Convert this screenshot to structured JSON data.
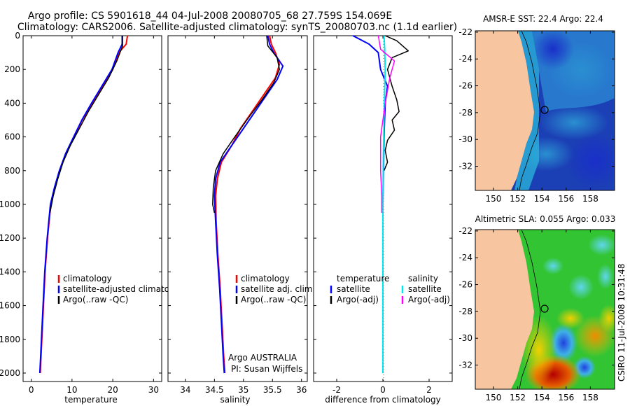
{
  "title": {
    "line1": "Argo profile: CS 5901618_44 04-Jul-2008 20080705_68 27.759S 154.069E",
    "line2": "Climatology: CARS2006. Satellite-adjusted climatology: synTS_20080703.nc (1.1d earlier)"
  },
  "timestamp": "CSIRO 11-Jul-2008 10:31:48",
  "colors": {
    "climatology": "#ff0000",
    "satellite": "#0000ff",
    "argo": "#000000",
    "satellite_sal": "#00e5ee",
    "argo_sal": "#ff00ff",
    "land": "#f7c59f"
  },
  "chart_data": [
    {
      "id": "temperature",
      "type": "line",
      "xlabel": "temperature",
      "xlim": [
        -2,
        32
      ],
      "ylim": [
        2050,
        0
      ],
      "xticks": [
        "0",
        "10",
        "20",
        "30"
      ],
      "xtick_values": [
        0,
        10,
        20,
        30
      ],
      "yticks": [
        "0",
        "200",
        "400",
        "600",
        "800",
        "1000",
        "1200",
        "1400",
        "1600",
        "1800",
        "2000"
      ],
      "ytick_values": [
        0,
        200,
        400,
        600,
        800,
        1000,
        1200,
        1400,
        1600,
        1800,
        2000
      ],
      "legend": [
        "climatology",
        "satellite-adjusted climatology",
        "Argo(..raw -QC)"
      ],
      "series": [
        {
          "name": "climatology",
          "color": "#ff0000",
          "width": 2,
          "points": [
            [
              23.6,
              0
            ],
            [
              23.3,
              50
            ],
            [
              21.5,
              100
            ],
            [
              20.0,
              200
            ],
            [
              17.5,
              300
            ],
            [
              15.0,
              400
            ],
            [
              12.5,
              500
            ],
            [
              10.5,
              600
            ],
            [
              8.5,
              700
            ],
            [
              7.0,
              800
            ],
            [
              5.8,
              900
            ],
            [
              4.8,
              1000
            ],
            [
              4.0,
              1200
            ],
            [
              3.4,
              1400
            ],
            [
              3.0,
              1600
            ],
            [
              2.6,
              1800
            ],
            [
              2.2,
              2000
            ]
          ]
        },
        {
          "name": "satellite-adjusted climatology",
          "color": "#0000ff",
          "width": 2,
          "points": [
            [
              22.3,
              0
            ],
            [
              22.3,
              50
            ],
            [
              21.3,
              100
            ],
            [
              19.8,
              200
            ],
            [
              17.3,
              300
            ],
            [
              14.8,
              400
            ],
            [
              12.4,
              500
            ],
            [
              10.4,
              600
            ],
            [
              8.4,
              700
            ],
            [
              6.9,
              800
            ],
            [
              5.7,
              900
            ],
            [
              4.7,
              1000
            ],
            [
              3.9,
              1200
            ],
            [
              3.3,
              1400
            ],
            [
              2.9,
              1600
            ],
            [
              2.5,
              1800
            ],
            [
              2.1,
              2000
            ]
          ]
        },
        {
          "name": "Argo(..raw -QC)",
          "color": "#000000",
          "width": 1.5,
          "points": [
            [
              22.4,
              0
            ],
            [
              22.4,
              60
            ],
            [
              21.0,
              150
            ],
            [
              19.0,
              250
            ],
            [
              16.5,
              350
            ],
            [
              14.0,
              450
            ],
            [
              11.8,
              550
            ],
            [
              9.6,
              650
            ],
            [
              7.8,
              750
            ],
            [
              6.5,
              850
            ],
            [
              5.4,
              950
            ],
            [
              4.6,
              1050
            ]
          ]
        }
      ]
    },
    {
      "id": "salinity",
      "type": "line",
      "xlabel": "salinity",
      "xlim": [
        33.7,
        36.1
      ],
      "ylim": [
        2050,
        0
      ],
      "xticks": [
        "34",
        "34.5",
        "35",
        "35.5",
        "36"
      ],
      "xtick_values": [
        34,
        34.5,
        35,
        35.5,
        36
      ],
      "yticks": [],
      "ytick_values": [],
      "legend": [
        "climatology",
        "satellite adj. clim.",
        "Argo(..raw -QC)"
      ],
      "annotation": [
        "Argo AUSTRALIA",
        "PI: Susan Wijffels"
      ],
      "series": [
        {
          "name": "climatology",
          "color": "#ff0000",
          "width": 2,
          "points": [
            [
              35.45,
              0
            ],
            [
              35.48,
              50
            ],
            [
              35.55,
              100
            ],
            [
              35.62,
              170
            ],
            [
              35.55,
              250
            ],
            [
              35.35,
              350
            ],
            [
              35.15,
              450
            ],
            [
              34.95,
              550
            ],
            [
              34.8,
              650
            ],
            [
              34.62,
              750
            ],
            [
              34.55,
              850
            ],
            [
              34.52,
              950
            ],
            [
              34.53,
              1100
            ],
            [
              34.56,
              1300
            ],
            [
              34.6,
              1500
            ],
            [
              34.63,
              1700
            ],
            [
              34.66,
              1900
            ],
            [
              34.68,
              2000
            ]
          ]
        },
        {
          "name": "satellite adj. clim.",
          "color": "#0000ff",
          "width": 2,
          "points": [
            [
              35.42,
              0
            ],
            [
              35.45,
              50
            ],
            [
              35.52,
              100
            ],
            [
              35.68,
              180
            ],
            [
              35.58,
              260
            ],
            [
              35.4,
              350
            ],
            [
              35.2,
              450
            ],
            [
              35.0,
              550
            ],
            [
              34.8,
              650
            ],
            [
              34.6,
              750
            ],
            [
              34.52,
              850
            ],
            [
              34.5,
              950
            ],
            [
              34.52,
              1100
            ],
            [
              34.55,
              1300
            ],
            [
              34.59,
              1500
            ],
            [
              34.62,
              1700
            ],
            [
              34.65,
              1900
            ],
            [
              34.67,
              2000
            ]
          ]
        },
        {
          "name": "Argo(..raw -QC)",
          "color": "#000000",
          "width": 1.5,
          "points": [
            [
              35.4,
              0
            ],
            [
              35.42,
              60
            ],
            [
              35.58,
              130
            ],
            [
              35.62,
              200
            ],
            [
              35.52,
              280
            ],
            [
              35.32,
              380
            ],
            [
              35.1,
              480
            ],
            [
              34.85,
              600
            ],
            [
              34.65,
              700
            ],
            [
              34.52,
              800
            ],
            [
              34.48,
              900
            ],
            [
              34.47,
              1000
            ],
            [
              34.5,
              1050
            ]
          ]
        }
      ]
    },
    {
      "id": "difference",
      "type": "line",
      "xlabel": "difference from climatology",
      "xlim": [
        -3,
        3
      ],
      "ylim": [
        2050,
        0
      ],
      "xticks": [
        "-2",
        "0",
        "2"
      ],
      "xtick_values": [
        -2,
        0,
        2
      ],
      "yticks": [],
      "ytick_values": [],
      "legend_left": [
        "temperature",
        "satellite",
        "Argo(-adj)"
      ],
      "legend_right": [
        "salinity",
        "satellite",
        "Argo(-adj)"
      ],
      "series": [
        {
          "name": "satellite",
          "color": "#0000ff",
          "width": 2,
          "points": [
            [
              -1.3,
              0
            ],
            [
              -0.6,
              50
            ],
            [
              -0.2,
              100
            ],
            [
              -0.1,
              200
            ],
            [
              0.2,
              300
            ],
            [
              0.1,
              400
            ],
            [
              0.05,
              600
            ],
            [
              0.0,
              1000
            ],
            [
              0.0,
              2000
            ]
          ]
        },
        {
          "name": "Argo(-adj)",
          "color": "#000000",
          "width": 1.5,
          "points": [
            [
              0.1,
              0
            ],
            [
              0.6,
              30
            ],
            [
              1.1,
              90
            ],
            [
              0.4,
              130
            ],
            [
              0.2,
              200
            ],
            [
              0.4,
              300
            ],
            [
              0.6,
              380
            ],
            [
              0.7,
              450
            ],
            [
              0.4,
              500
            ],
            [
              0.5,
              560
            ],
            [
              0.2,
              620
            ],
            [
              0.1,
              680
            ],
            [
              0.2,
              750
            ],
            [
              0.05,
              800
            ]
          ]
        },
        {
          "name": "satellite",
          "color": "#00e5ee",
          "width": 2,
          "points": [
            [
              0.05,
              0
            ],
            [
              0.08,
              80
            ],
            [
              0.1,
              200
            ],
            [
              0.06,
              400
            ],
            [
              0.02,
              700
            ],
            [
              0.0,
              1000
            ],
            [
              0.0,
              2000
            ]
          ]
        },
        {
          "name": "Argo(-adj)",
          "color": "#ff00ff",
          "width": 1.5,
          "points": [
            [
              -0.2,
              0
            ],
            [
              -0.1,
              80
            ],
            [
              0.5,
              150
            ],
            [
              0.3,
              250
            ],
            [
              0.1,
              400
            ],
            [
              -0.1,
              600
            ],
            [
              -0.1,
              800
            ],
            [
              -0.05,
              950
            ],
            [
              -0.05,
              1050
            ]
          ]
        }
      ]
    },
    {
      "id": "amsre",
      "type": "heatmap",
      "title": "AMSR-E SST: 22.4 Argo: 22.4",
      "xticks": [
        "150",
        "152",
        "154",
        "156",
        "158"
      ],
      "xtick_values": [
        150,
        152,
        154,
        156,
        158
      ],
      "yticks": [
        "-22",
        "-24",
        "-26",
        "-28",
        "-30",
        "-32"
      ],
      "ytick_values": [
        -22,
        -24,
        -26,
        -28,
        -30,
        -32
      ],
      "xlim": [
        148.5,
        160
      ],
      "ylim": [
        -33.8,
        -21.9
      ],
      "marker": [
        154.069,
        -27.759
      ]
    },
    {
      "id": "altimetry",
      "type": "heatmap",
      "title": "Altimetric SLA: 0.055 Argo: 0.033",
      "xticks": [
        "150",
        "152",
        "154",
        "156",
        "158"
      ],
      "xtick_values": [
        150,
        152,
        154,
        156,
        158
      ],
      "yticks": [
        "-22",
        "-24",
        "-26",
        "-28",
        "-30",
        "-32"
      ],
      "ytick_values": [
        -22,
        -24,
        -26,
        -28,
        -30,
        -32
      ],
      "xlim": [
        148.5,
        160
      ],
      "ylim": [
        -33.8,
        -21.9
      ],
      "marker": [
        154.069,
        -27.759
      ]
    }
  ]
}
